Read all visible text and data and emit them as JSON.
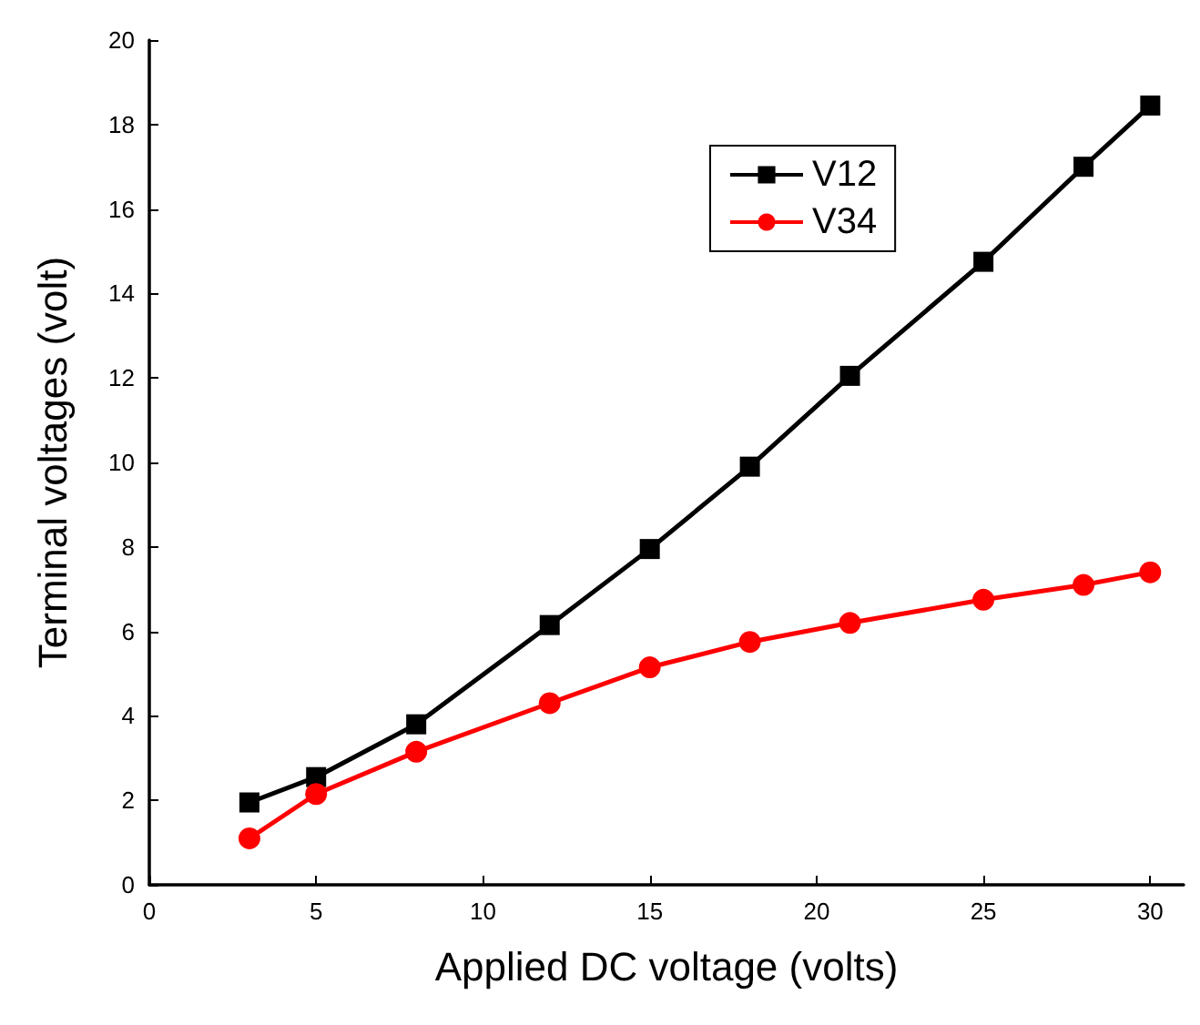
{
  "chart_data": {
    "type": "line",
    "xlabel": "Applied DC voltage (volts)",
    "ylabel": "Terminal voltages (volt)",
    "x": [
      3,
      5,
      8,
      12,
      15,
      18,
      21,
      25,
      28,
      30
    ],
    "series": [
      {
        "name": "V12",
        "color": "#000000",
        "marker": "square",
        "values": [
          1.95,
          2.55,
          3.8,
          6.15,
          7.95,
          9.9,
          12.05,
          14.75,
          17.0,
          18.45
        ]
      },
      {
        "name": "V34",
        "color": "#ff0000",
        "marker": "circle",
        "values": [
          1.1,
          2.15,
          3.15,
          4.3,
          5.15,
          5.75,
          6.2,
          6.75,
          7.1,
          7.4
        ]
      }
    ],
    "xlim": [
      0,
      31
    ],
    "xticks": [
      0,
      5,
      10,
      15,
      20,
      25,
      30
    ],
    "ylim": [
      0,
      20
    ],
    "yticks": [
      0,
      2,
      4,
      6,
      8,
      10,
      12,
      14,
      16,
      18,
      20
    ],
    "grid": false,
    "legend": "top right",
    "line_style": "solid"
  }
}
